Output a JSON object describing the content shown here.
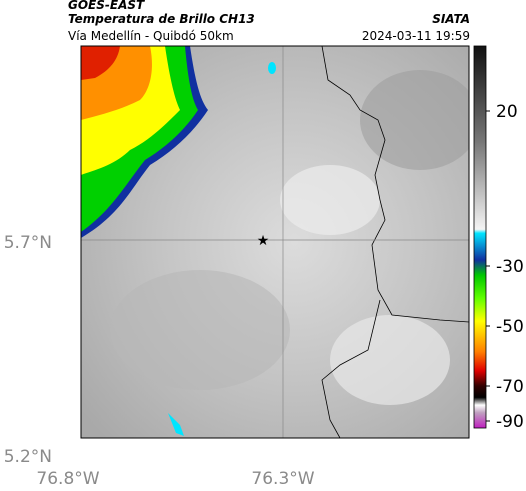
{
  "header": {
    "source": "GOES-EAST",
    "title": "Temperatura de Brillo CH13",
    "subtitle": "Vía Medellín - Quibdó 50km",
    "org": "SIATA",
    "datetime": "2024-03-11 19:59"
  },
  "axes": {
    "lat": [
      "5.7°N",
      "5.2°N"
    ],
    "lon": [
      "76.8°W",
      "76.3°W"
    ]
  },
  "colorbar": {
    "ticks": [
      "20",
      "-30",
      "-50",
      "-70",
      "-90"
    ]
  }
}
